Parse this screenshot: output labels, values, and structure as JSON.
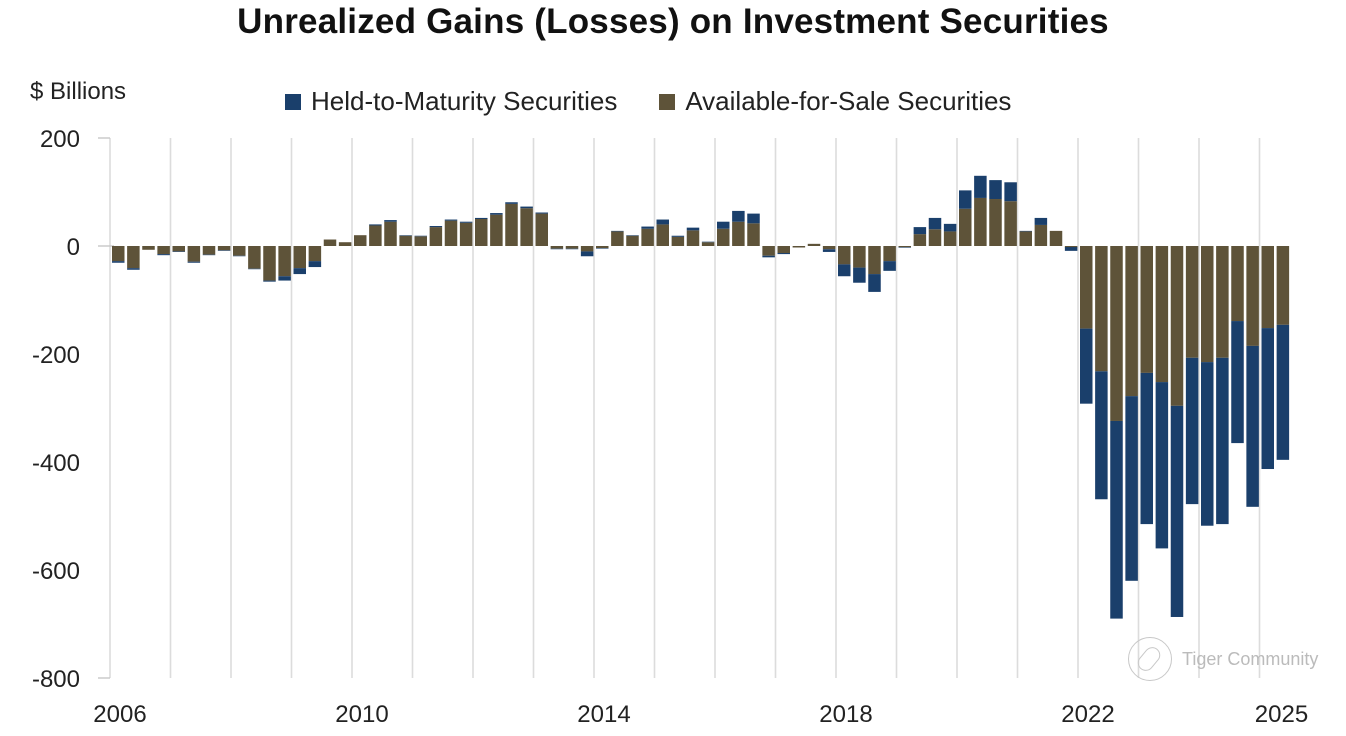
{
  "chart_data": {
    "type": "bar",
    "stacked": true,
    "title": "Unrealized Gains (Losses) on Investment Securities",
    "ylabel": "$ Billions",
    "xlabel": "",
    "ylim": [
      -800,
      200
    ],
    "yticks": [
      200,
      0,
      -200,
      -400,
      -600,
      -800
    ],
    "xtick_labels": [
      {
        "label": "2006",
        "year": 2006
      },
      {
        "label": "2010",
        "year": 2010
      },
      {
        "label": "2014",
        "year": 2014
      },
      {
        "label": "2018",
        "year": 2018
      },
      {
        "label": "2022",
        "year": 2022
      },
      {
        "label": "2025",
        "year": 2025
      }
    ],
    "grid": "vertical-yearly",
    "legend_position": "top",
    "frequency": "quarterly",
    "start": "2006Q1",
    "categories": [
      "2006Q1",
      "2006Q2",
      "2006Q3",
      "2006Q4",
      "2007Q1",
      "2007Q2",
      "2007Q3",
      "2007Q4",
      "2008Q1",
      "2008Q2",
      "2008Q3",
      "2008Q4",
      "2009Q1",
      "2009Q2",
      "2009Q3",
      "2009Q4",
      "2010Q1",
      "2010Q2",
      "2010Q3",
      "2010Q4",
      "2011Q1",
      "2011Q2",
      "2011Q3",
      "2011Q4",
      "2012Q1",
      "2012Q2",
      "2012Q3",
      "2012Q4",
      "2013Q1",
      "2013Q2",
      "2013Q3",
      "2013Q4",
      "2014Q1",
      "2014Q2",
      "2014Q3",
      "2014Q4",
      "2015Q1",
      "2015Q2",
      "2015Q3",
      "2015Q4",
      "2016Q1",
      "2016Q2",
      "2016Q3",
      "2016Q4",
      "2017Q1",
      "2017Q2",
      "2017Q3",
      "2017Q4",
      "2018Q1",
      "2018Q2",
      "2018Q3",
      "2018Q4",
      "2019Q1",
      "2019Q2",
      "2019Q3",
      "2019Q4",
      "2020Q1",
      "2020Q2",
      "2020Q3",
      "2020Q4",
      "2021Q1",
      "2021Q2",
      "2021Q3",
      "2021Q4",
      "2022Q1",
      "2022Q2",
      "2022Q3",
      "2022Q4",
      "2023Q1",
      "2023Q2",
      "2023Q3",
      "2023Q4",
      "2024Q1",
      "2024Q2",
      "2024Q3",
      "2024Q4",
      "2025Q1",
      "2025Q2"
    ],
    "series": [
      {
        "name": "Available-for-Sale Securities",
        "color": "#5e5339",
        "values": [
          -28,
          -41,
          -7,
          -15,
          -10,
          -29,
          -16,
          -8,
          -18,
          -42,
          -64,
          -56,
          -41,
          -28,
          12,
          7,
          20,
          38,
          45,
          19,
          18,
          35,
          47,
          43,
          50,
          58,
          78,
          70,
          60,
          -5,
          -5,
          -10,
          -4,
          27,
          19,
          32,
          40,
          17,
          29,
          7,
          32,
          45,
          42,
          -18,
          -13,
          -2,
          4,
          -6,
          -34,
          -40,
          -52,
          -28,
          -2,
          22,
          31,
          27,
          69,
          89,
          87,
          83,
          27,
          39,
          28,
          -2,
          -153,
          -232,
          -324,
          -278,
          -235,
          -252,
          -296,
          -207,
          -215,
          -207,
          -139,
          -185,
          -152,
          -146
        ]
      },
      {
        "name": "Held-to-Maturity Securities",
        "color": "#1a3f6b",
        "values": [
          -3,
          -3,
          0,
          -2,
          -1,
          -2,
          -1,
          -1,
          -1,
          -1,
          -2,
          -8,
          -11,
          -11,
          0,
          0,
          0,
          2,
          3,
          1,
          1,
          2,
          2,
          2,
          2,
          3,
          3,
          3,
          2,
          -1,
          -1,
          -9,
          -1,
          1,
          1,
          4,
          9,
          2,
          5,
          1,
          13,
          20,
          18,
          -3,
          -2,
          0,
          0,
          -5,
          -22,
          -28,
          -33,
          -18,
          -1,
          13,
          21,
          14,
          34,
          41,
          35,
          35,
          1,
          13,
          0,
          -7,
          -139,
          -237,
          -366,
          -342,
          -280,
          -308,
          -391,
          -271,
          -303,
          -308,
          -226,
          -298,
          -261,
          -250
        ]
      }
    ]
  },
  "labels": {
    "title": "Unrealized Gains (Losses) on Investment Securities",
    "y_unit": "$ Billions",
    "legend_htm": "Held-to-Maturity Securities",
    "legend_afs": "Available-for-Sale Securities",
    "watermark": "Tiger Community"
  },
  "colors": {
    "htm": "#1a3f6b",
    "afs": "#5e5339",
    "gridline": "#dcdcdc"
  }
}
